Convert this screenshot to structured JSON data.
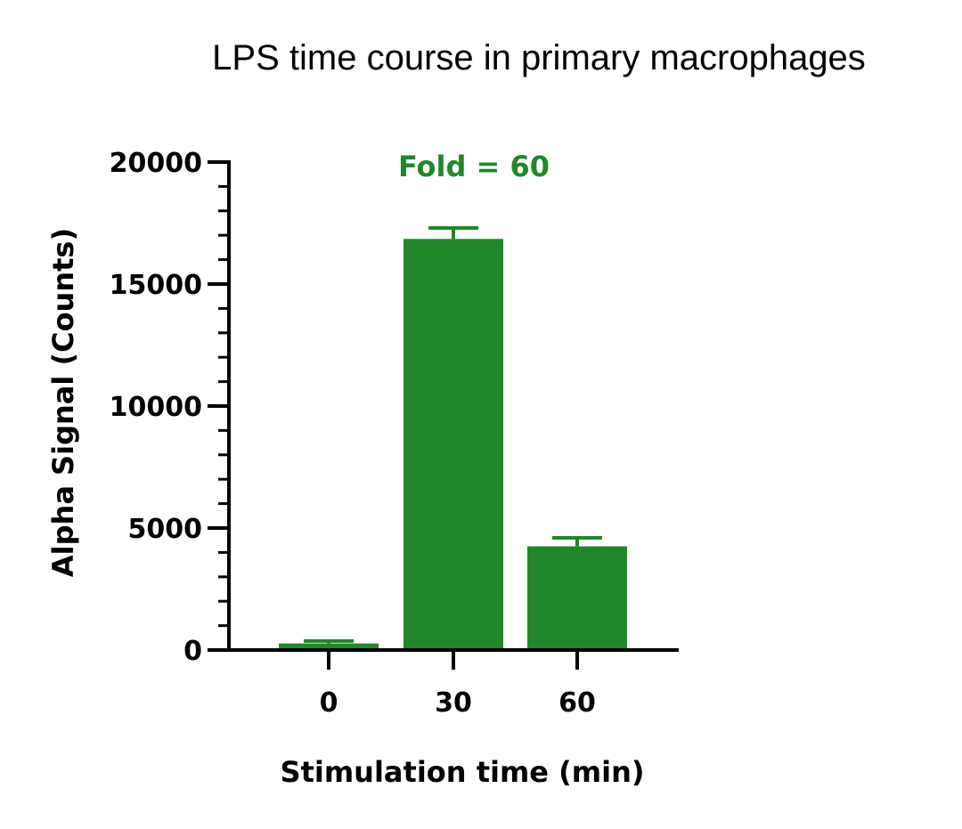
{
  "chart_data": {
    "type": "bar",
    "title": "LPS time course in primary macrophages",
    "xlabel": "Stimulation time (min)",
    "ylabel": "Alpha Signal (Counts)",
    "categories": [
      "0",
      "30",
      "60"
    ],
    "values": [
      270,
      16850,
      4250
    ],
    "errors": [
      100,
      450,
      350
    ],
    "ylim": [
      0,
      20000
    ],
    "yticks": [
      "0",
      "5000",
      "10000",
      "15000",
      "20000"
    ],
    "minor_tick_step": 1000,
    "grid": false,
    "bar_color": "#22862b",
    "annotation": "Fold = 60",
    "annotation_color": "#22862b"
  }
}
